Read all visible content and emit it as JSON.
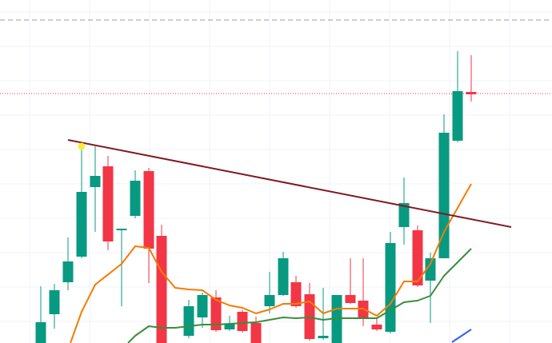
{
  "chart_data": {
    "type": "candlestick",
    "xlim": [
      0,
      690
    ],
    "ylim": [
      0,
      429
    ],
    "grid": true,
    "xticks": [
      37,
      112,
      187,
      262,
      337,
      412,
      487,
      562,
      637
    ],
    "yticks": [
      27,
      70,
      113,
      156,
      199,
      242,
      285,
      328,
      371,
      414
    ],
    "up_color": "#089981",
    "down_color": "#f23645",
    "x": [
      51,
      68,
      85,
      102,
      119,
      135,
      152,
      169,
      186,
      202,
      236,
      253,
      270,
      287,
      303,
      320,
      337,
      354,
      370,
      387,
      404,
      421,
      438,
      454,
      471,
      488,
      505,
      522,
      538,
      555,
      572,
      589
    ],
    "open": [
      0,
      36,
      76,
      108,
      195,
      221,
      141,
      159,
      215,
      134,
      9,
      32,
      57,
      17,
      39,
      25,
      46,
      60,
      76,
      61,
      6,
      0,
      60,
      53,
      23,
      14,
      145,
      141,
      78,
      106,
      253,
      314
    ],
    "close": [
      26,
      66,
      102,
      189,
      209,
      127,
      143,
      203,
      118,
      0,
      46,
      60,
      16,
      24,
      15,
      0,
      60,
      106,
      46,
      5,
      9,
      60,
      50,
      30,
      17,
      125,
      175,
      72,
      106,
      263,
      315,
      311
    ],
    "high": [
      71,
      74,
      132,
      244,
      246,
      234,
      143,
      216,
      219,
      148,
      54,
      63,
      66,
      34,
      41,
      33,
      89,
      114,
      84,
      75,
      69,
      60,
      106,
      106,
      31,
      139,
      207,
      147,
      113,
      286,
      365,
      360
    ],
    "low": [
      0,
      18,
      66,
      106,
      139,
      116,
      46,
      156,
      75,
      0,
      6,
      19,
      14,
      15,
      13,
      0,
      37,
      59,
      44,
      3,
      4,
      0,
      49,
      21,
      15,
      12,
      123,
      70,
      25,
      106,
      251,
      302
    ],
    "lines": [
      {
        "color": "#f57c00",
        "x": [
          88,
          102,
          119,
          152,
          169,
          186,
          202,
          219,
          236,
          253,
          270,
          287,
          303,
          320,
          337,
          354,
          370,
          387,
          404,
          421,
          438,
          454,
          471,
          488,
          505,
          522,
          538,
          555,
          572,
          589
        ],
        "y": [
          0,
          39,
          73,
          99,
          121,
          119,
          89,
          69,
          67,
          66,
          54,
          47,
          44,
          37,
          42,
          49,
          49,
          52,
          37,
          43,
          43,
          43,
          34,
          49,
          77,
          77,
          99,
          139,
          169,
          199
        ]
      },
      {
        "color": "#388e3c",
        "x": [
          160,
          169,
          186,
          202,
          219,
          236,
          253,
          270,
          287,
          303,
          320,
          337,
          354,
          370,
          387,
          404,
          421,
          438,
          454,
          471,
          488,
          505,
          522,
          538,
          555,
          572,
          589
        ],
        "y": [
          0,
          9,
          21,
          19,
          19,
          21,
          23,
          23,
          24,
          25,
          26,
          29,
          32,
          31,
          32,
          29,
          31,
          31,
          31,
          31,
          41,
          51,
          53,
          59,
          84,
          101,
          118
        ]
      },
      {
        "color": "#2962ff",
        "x": [
          565,
          589
        ],
        "y": [
          1,
          17
        ]
      }
    ],
    "trendline": {
      "color": "#801922",
      "x": [
        85,
        639
      ],
      "y": [
        254,
        145
      ]
    },
    "hlines": [
      {
        "value": 404,
        "color": "#9e9e9e",
        "dash": "6 4"
      },
      {
        "value": 312,
        "color": "#f23645",
        "dash": "1 2"
      }
    ],
    "marker": {
      "x": 102,
      "y": 246,
      "color": "#ffeb3b"
    }
  }
}
